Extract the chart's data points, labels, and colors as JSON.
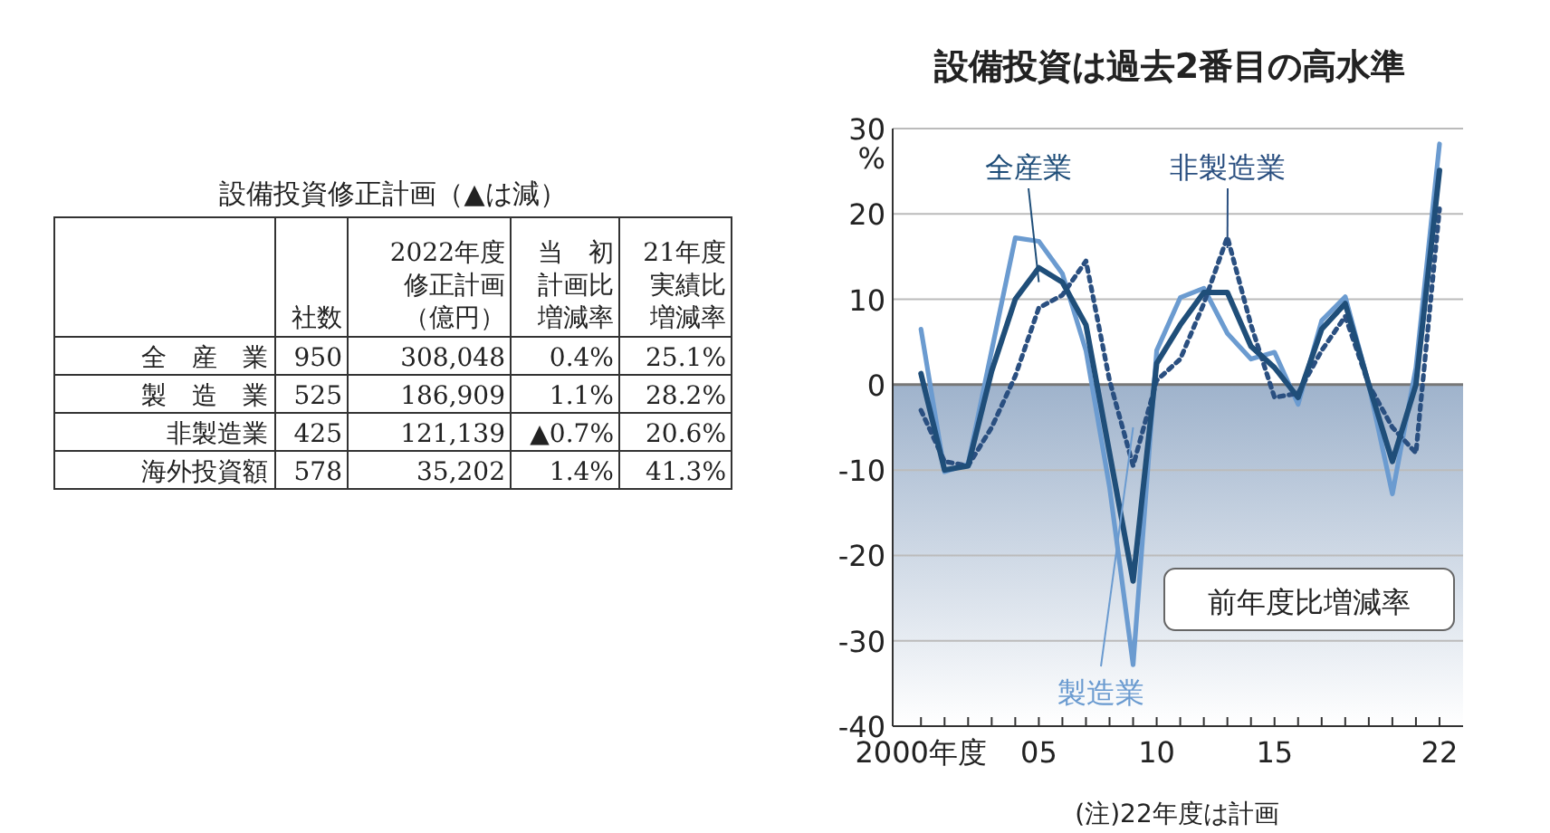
{
  "chart_data": [
    {
      "type": "other",
      "title": "設備投資修正計画（▲は減）",
      "categories": [
        null,
        "社数",
        "2022年度修正計画（億円）",
        "当　初計画比増減率",
        "21年度実績比増減率"
      ],
      "y_categories": [
        "全　産　業",
        "製　造　業",
        "非製造業",
        "海外投資額"
      ],
      "cell_labels": [
        [
          "950",
          "308,048",
          "0.4%",
          "25.1%"
        ],
        [
          "525",
          "186,909",
          "1.1%",
          "28.2%"
        ],
        [
          "425",
          "121,139",
          "▲0.7%",
          "20.6%"
        ],
        [
          "578",
          "35,202",
          "1.4%",
          "41.3%"
        ]
      ]
    },
    {
      "type": "line",
      "title": "設備投資は過去2番目の高水準",
      "ylabel": "%",
      "x": [
        2000,
        2001,
        2002,
        2003,
        2004,
        2005,
        2006,
        2007,
        2008,
        2009,
        2010,
        2011,
        2012,
        2013,
        2014,
        2015,
        2016,
        2017,
        2018,
        2019,
        2020,
        2021,
        2022
      ],
      "xlim": [
        1998.8,
        2023
      ],
      "xticks": [
        {
          "value": 2000,
          "label": "2000年度"
        },
        {
          "value": 2001,
          "label": null
        },
        {
          "value": 2002,
          "label": null
        },
        {
          "value": 2003,
          "label": null
        },
        {
          "value": 2004,
          "label": null
        },
        {
          "value": 2005,
          "label": "05"
        },
        {
          "value": 2006,
          "label": null
        },
        {
          "value": 2007,
          "label": null
        },
        {
          "value": 2008,
          "label": null
        },
        {
          "value": 2009,
          "label": null
        },
        {
          "value": 2010,
          "label": "10"
        },
        {
          "value": 2011,
          "label": null
        },
        {
          "value": 2012,
          "label": null
        },
        {
          "value": 2013,
          "label": null
        },
        {
          "value": 2014,
          "label": null
        },
        {
          "value": 2015,
          "label": "15"
        },
        {
          "value": 2016,
          "label": null
        },
        {
          "value": 2017,
          "label": null
        },
        {
          "value": 2018,
          "label": null
        },
        {
          "value": 2019,
          "label": null
        },
        {
          "value": 2020,
          "label": null
        },
        {
          "value": 2021,
          "label": null
        },
        {
          "value": 2022,
          "label": "22"
        }
      ],
      "ylim": [
        -40,
        30
      ],
      "yticks": [
        -40,
        -30,
        -20,
        -10,
        0,
        10,
        20,
        30
      ],
      "grid": "y",
      "legend": false,
      "marker": "none",
      "bands": [
        {
          "axis": "y",
          "from": -40,
          "to": 0,
          "color": "#9fb3cc"
        }
      ],
      "series": [
        {
          "name": "製造業",
          "color": "#6b9bd0",
          "line_style": "solid",
          "values": [
            6.5,
            -10.2,
            -9.3,
            4,
            17.2,
            16.8,
            13,
            4,
            -12,
            -32.8,
            4,
            10.2,
            11.3,
            6,
            3,
            3.8,
            -2.3,
            7.5,
            10.3,
            0,
            -12.8,
            2,
            28.2
          ]
        },
        {
          "name": "非製造業",
          "color": "#2a4f80",
          "line_style": "dotted",
          "values": [
            -3,
            -9,
            -9.5,
            -5,
            1,
            9,
            10.5,
            14.5,
            0.5,
            -9.5,
            0.5,
            3,
            9.5,
            17.3,
            7,
            -1.5,
            -1,
            4,
            8,
            0,
            -5,
            -8,
            20.6
          ]
        },
        {
          "name": "全産業",
          "color": "#1f4e79",
          "line_style": "solid",
          "values": [
            1.3,
            -10,
            -9.5,
            1.6,
            10,
            13.7,
            12,
            7,
            -8,
            -23,
            2.5,
            7,
            10.8,
            10.8,
            4.5,
            2,
            -1.5,
            6.5,
            9.5,
            0,
            -9,
            0,
            25.1
          ]
        }
      ],
      "annotations": [
        "前年度比増減率",
        "(注)22年度は計画"
      ]
    }
  ]
}
